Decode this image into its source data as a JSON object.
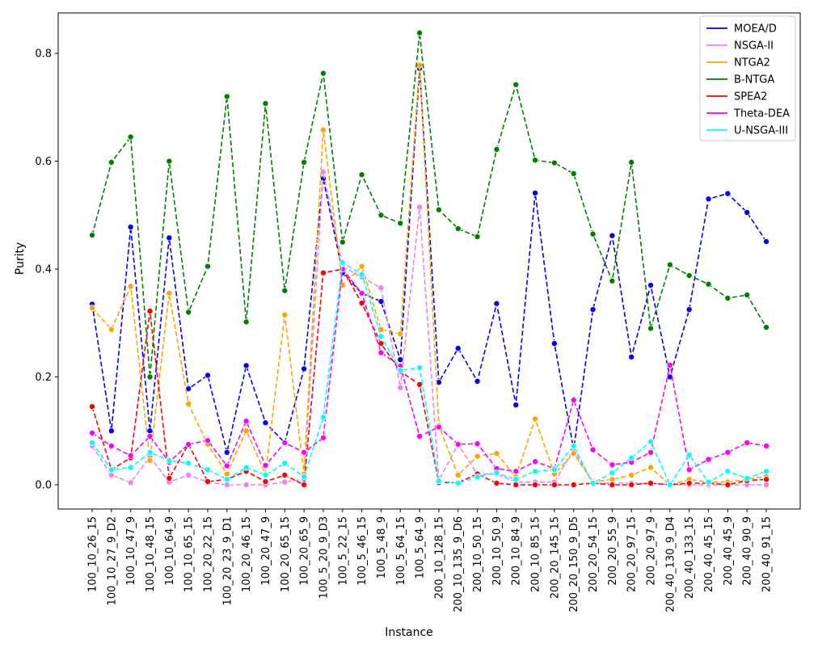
{
  "chart_data": {
    "type": "line",
    "title": "",
    "xlabel": "Instance",
    "ylabel": "Purity",
    "ylim": [
      -0.045,
      0.875
    ],
    "yticks": [
      0.0,
      0.2,
      0.4,
      0.6,
      0.8
    ],
    "ytick_labels": [
      "0.0",
      "0.2",
      "0.4",
      "0.6",
      "0.8"
    ],
    "grid": false,
    "legend_position": "top-right",
    "categories": [
      "100_10_26_15",
      "100_10_27_9_D2",
      "100_10_47_9",
      "100_10_48_15",
      "100_10_64_9",
      "100_10_65_15",
      "100_20_22_15",
      "100_20_23_9_D1",
      "100_20_46_15",
      "100_20_47_9",
      "100_20_65_15",
      "100_20_65_9",
      "100_5_20_9_D3",
      "100_5_22_15",
      "100_5_46_15",
      "100_5_48_9",
      "100_5_64_15",
      "100_5_64_9",
      "200_10_128_15",
      "200_10_135_9_D6",
      "200_10_50_15",
      "200_10_50_9",
      "200_10_84_9",
      "200_10_85_15",
      "200_20_145_15",
      "200_20_150_9_D5",
      "200_20_54_15",
      "200_20_55_9",
      "200_20_97_15",
      "200_20_97_9",
      "200_40_130_9_D4",
      "200_40_133_15",
      "200_40_45_15",
      "200_40_45_9",
      "200_40_90_9",
      "200_40_91_15"
    ],
    "series": [
      {
        "name": "MOEA/D",
        "color": "#0000ff",
        "values": [
          0.335,
          0.1,
          0.478,
          0.1,
          0.458,
          0.178,
          0.203,
          0.06,
          0.221,
          0.115,
          0.078,
          0.215,
          0.568,
          0.393,
          0.355,
          0.34,
          0.232,
          0.772,
          0.19,
          0.253,
          0.192,
          0.336,
          0.148,
          0.541,
          0.262,
          0.065,
          0.325,
          0.462,
          0.237,
          0.37,
          0.2,
          0.325,
          0.53,
          0.54,
          0.505,
          0.451
        ]
      },
      {
        "name": "NSGA-II",
        "color": "#ee82ee",
        "values": [
          0.072,
          0.018,
          0.004,
          0.052,
          0.005,
          0.018,
          0.005,
          0.0,
          0.0,
          0.0,
          0.005,
          0.01,
          0.58,
          0.405,
          0.385,
          0.365,
          0.18,
          0.515,
          0.008,
          0.075,
          0.02,
          0.02,
          0.005,
          0.005,
          0.005,
          0.065,
          0.003,
          0.003,
          0.003,
          0.003,
          0.0,
          0.0,
          0.0,
          0.0,
          0.0,
          0.0
        ]
      },
      {
        "name": "NTGA2",
        "color": "#ffa500",
        "values": [
          0.328,
          0.288,
          0.368,
          0.045,
          0.355,
          0.15,
          0.075,
          0.02,
          0.1,
          0.02,
          0.315,
          0.02,
          0.658,
          0.37,
          0.405,
          0.288,
          0.28,
          0.778,
          0.11,
          0.018,
          0.053,
          0.058,
          0.015,
          0.122,
          0.02,
          0.058,
          0.005,
          0.01,
          0.018,
          0.032,
          0.0,
          0.01,
          0.005,
          0.005,
          0.01,
          0.015
        ]
      },
      {
        "name": "B-NTGA",
        "color": "#008000",
        "values": [
          0.463,
          0.598,
          0.645,
          0.2,
          0.6,
          0.32,
          0.405,
          0.72,
          0.302,
          0.707,
          0.36,
          0.598,
          0.763,
          0.45,
          0.575,
          0.5,
          0.485,
          0.838,
          0.51,
          0.475,
          0.46,
          0.622,
          0.742,
          0.602,
          0.597,
          0.577,
          0.465,
          0.378,
          0.598,
          0.29,
          0.408,
          0.388,
          0.372,
          0.346,
          0.352,
          0.292
        ]
      },
      {
        "name": "SPEA2",
        "color": "#ff0000",
        "values": [
          0.145,
          0.028,
          0.05,
          0.322,
          0.012,
          0.075,
          0.006,
          0.01,
          0.025,
          0.006,
          0.018,
          0.0,
          0.393,
          0.4,
          0.337,
          0.262,
          0.21,
          0.186,
          0.004,
          0.004,
          0.02,
          0.003,
          0.0,
          0.0,
          0.0,
          0.0,
          0.003,
          0.0,
          0.0,
          0.003,
          0.0,
          0.003,
          0.003,
          0.0,
          0.008,
          0.01
        ]
      },
      {
        "name": "Theta-DEA",
        "color": "#ff00ff",
        "values": [
          0.096,
          0.072,
          0.054,
          0.09,
          0.042,
          0.075,
          0.082,
          0.035,
          0.118,
          0.036,
          0.078,
          0.06,
          0.087,
          0.4,
          0.355,
          0.245,
          0.22,
          0.09,
          0.107,
          0.075,
          0.076,
          0.03,
          0.025,
          0.043,
          0.03,
          0.157,
          0.065,
          0.037,
          0.042,
          0.06,
          0.222,
          0.028,
          0.047,
          0.06,
          0.078,
          0.072
        ]
      },
      {
        "name": "U-NSGA-III",
        "color": "#00ffff",
        "values": [
          0.078,
          0.028,
          0.032,
          0.06,
          0.045,
          0.04,
          0.028,
          0.01,
          0.032,
          0.018,
          0.04,
          0.015,
          0.125,
          0.412,
          0.39,
          0.275,
          0.212,
          0.217,
          0.007,
          0.003,
          0.015,
          0.022,
          0.01,
          0.025,
          0.028,
          0.072,
          0.003,
          0.022,
          0.05,
          0.08,
          0.0,
          0.055,
          0.005,
          0.025,
          0.012,
          0.025
        ]
      }
    ]
  }
}
